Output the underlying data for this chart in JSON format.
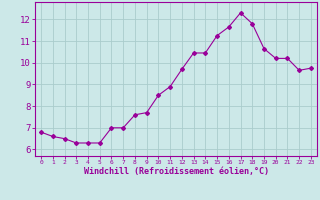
{
  "x": [
    0,
    1,
    2,
    3,
    4,
    5,
    6,
    7,
    8,
    9,
    10,
    11,
    12,
    13,
    14,
    15,
    16,
    17,
    18,
    19,
    20,
    21,
    22,
    23
  ],
  "y": [
    6.8,
    6.6,
    6.5,
    6.3,
    6.3,
    6.3,
    7.0,
    7.0,
    7.6,
    7.7,
    8.5,
    8.9,
    9.7,
    10.45,
    10.45,
    11.25,
    11.65,
    12.3,
    11.8,
    10.65,
    10.2,
    10.2,
    9.65,
    9.75
  ],
  "line_color": "#990099",
  "marker": "D",
  "marker_size": 2,
  "bg_color": "#cce8e8",
  "grid_color": "#aacccc",
  "xlabel": "Windchill (Refroidissement éolien,°C)",
  "xlabel_color": "#990099",
  "tick_color": "#990099",
  "ylabel_ticks": [
    6,
    7,
    8,
    9,
    10,
    11,
    12
  ],
  "xlim": [
    -0.5,
    23.5
  ],
  "ylim": [
    5.7,
    12.8
  ],
  "title": ""
}
